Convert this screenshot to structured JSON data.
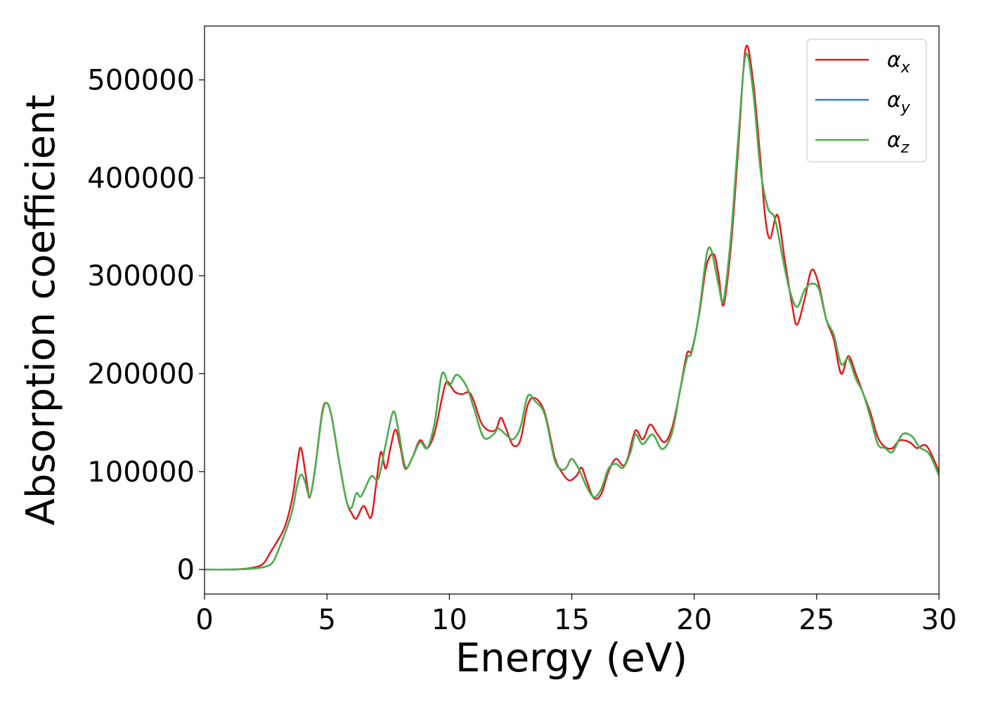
{
  "chart_data": {
    "type": "line",
    "title": "",
    "xlabel": "Energy (eV)",
    "ylabel": "Absorption coefficient",
    "xlim": [
      0,
      30
    ],
    "ylim": [
      -25000,
      555000
    ],
    "xticks": [
      0,
      5,
      10,
      15,
      20,
      25,
      30
    ],
    "xtick_labels": [
      "0",
      "5",
      "10",
      "15",
      "20",
      "25",
      "30"
    ],
    "yticks": [
      0,
      100000,
      200000,
      300000,
      400000,
      500000
    ],
    "ytick_labels": [
      "0",
      "100000",
      "200000",
      "300000",
      "400000",
      "500000"
    ],
    "grid": false,
    "legend_position": "top-right",
    "series": [
      {
        "name": "α_x",
        "symbol": "α",
        "subscript": "x",
        "color": "#e41a1c",
        "points": [
          [
            0,
            0
          ],
          [
            1,
            0
          ],
          [
            1.5,
            500
          ],
          [
            2,
            2000
          ],
          [
            2.4,
            6000
          ],
          [
            2.7,
            18000
          ],
          [
            3.0,
            30000
          ],
          [
            3.3,
            45000
          ],
          [
            3.6,
            75000
          ],
          [
            3.8,
            110000
          ],
          [
            3.9,
            124000
          ],
          [
            4.0,
            118000
          ],
          [
            4.2,
            85000
          ],
          [
            4.3,
            74000
          ],
          [
            4.5,
            100000
          ],
          [
            4.8,
            160000
          ],
          [
            5.0,
            170000
          ],
          [
            5.2,
            155000
          ],
          [
            5.5,
            110000
          ],
          [
            5.8,
            70000
          ],
          [
            6.0,
            58000
          ],
          [
            6.2,
            52000
          ],
          [
            6.5,
            65000
          ],
          [
            6.8,
            53000
          ],
          [
            7.0,
            85000
          ],
          [
            7.2,
            120000
          ],
          [
            7.4,
            103000
          ],
          [
            7.6,
            125000
          ],
          [
            7.8,
            143000
          ],
          [
            8.0,
            125000
          ],
          [
            8.2,
            103000
          ],
          [
            8.5,
            115000
          ],
          [
            8.8,
            132000
          ],
          [
            9.1,
            124000
          ],
          [
            9.4,
            140000
          ],
          [
            9.7,
            175000
          ],
          [
            9.9,
            192000
          ],
          [
            10.2,
            182000
          ],
          [
            10.5,
            179000
          ],
          [
            10.8,
            181000
          ],
          [
            11.0,
            172000
          ],
          [
            11.3,
            150000
          ],
          [
            11.6,
            142000
          ],
          [
            11.9,
            143000
          ],
          [
            12.1,
            155000
          ],
          [
            12.3,
            145000
          ],
          [
            12.6,
            127000
          ],
          [
            12.9,
            132000
          ],
          [
            13.2,
            168000
          ],
          [
            13.5,
            175000
          ],
          [
            13.9,
            160000
          ],
          [
            14.3,
            115000
          ],
          [
            14.6,
            99000
          ],
          [
            14.9,
            91000
          ],
          [
            15.2,
            96000
          ],
          [
            15.4,
            104000
          ],
          [
            15.6,
            91000
          ],
          [
            15.9,
            73000
          ],
          [
            16.2,
            77000
          ],
          [
            16.5,
            100000
          ],
          [
            16.8,
            113000
          ],
          [
            17.1,
            106000
          ],
          [
            17.3,
            115000
          ],
          [
            17.6,
            142000
          ],
          [
            17.9,
            133000
          ],
          [
            18.2,
            148000
          ],
          [
            18.5,
            138000
          ],
          [
            18.8,
            130000
          ],
          [
            19.1,
            145000
          ],
          [
            19.4,
            180000
          ],
          [
            19.7,
            220000
          ],
          [
            19.9,
            224000
          ],
          [
            20.2,
            260000
          ],
          [
            20.5,
            310000
          ],
          [
            20.8,
            322000
          ],
          [
            21.0,
            300000
          ],
          [
            21.2,
            270000
          ],
          [
            21.5,
            330000
          ],
          [
            21.8,
            430000
          ],
          [
            22.1,
            532000
          ],
          [
            22.4,
            500000
          ],
          [
            22.7,
            420000
          ],
          [
            22.9,
            360000
          ],
          [
            23.1,
            338000
          ],
          [
            23.4,
            362000
          ],
          [
            23.7,
            316000
          ],
          [
            24.0,
            270000
          ],
          [
            24.2,
            250000
          ],
          [
            24.5,
            275000
          ],
          [
            24.8,
            306000
          ],
          [
            25.1,
            290000
          ],
          [
            25.4,
            255000
          ],
          [
            25.7,
            235000
          ],
          [
            26.0,
            200000
          ],
          [
            26.3,
            218000
          ],
          [
            26.6,
            200000
          ],
          [
            26.9,
            180000
          ],
          [
            27.2,
            160000
          ],
          [
            27.5,
            135000
          ],
          [
            27.8,
            125000
          ],
          [
            28.1,
            124000
          ],
          [
            28.4,
            132000
          ],
          [
            28.8,
            130000
          ],
          [
            29.1,
            124000
          ],
          [
            29.5,
            126000
          ],
          [
            30.0,
            100000
          ]
        ]
      },
      {
        "name": "α_y",
        "symbol": "α",
        "subscript": "y",
        "color": "#377eb8",
        "points": [
          [
            0,
            0
          ],
          [
            1,
            0
          ],
          [
            1.5,
            300
          ],
          [
            2,
            1000
          ],
          [
            2.5,
            3000
          ],
          [
            2.8,
            8000
          ],
          [
            3.1,
            25000
          ],
          [
            3.4,
            45000
          ],
          [
            3.6,
            62000
          ],
          [
            3.8,
            88000
          ],
          [
            3.95,
            97000
          ],
          [
            4.1,
            90000
          ],
          [
            4.3,
            75000
          ],
          [
            4.5,
            100000
          ],
          [
            4.8,
            158000
          ],
          [
            5.0,
            170000
          ],
          [
            5.2,
            155000
          ],
          [
            5.5,
            110000
          ],
          [
            5.8,
            70000
          ],
          [
            6.0,
            63000
          ],
          [
            6.2,
            78000
          ],
          [
            6.4,
            75000
          ],
          [
            6.8,
            95000
          ],
          [
            7.1,
            93000
          ],
          [
            7.4,
            128000
          ],
          [
            7.7,
            161000
          ],
          [
            7.9,
            145000
          ],
          [
            8.2,
            105000
          ],
          [
            8.5,
            115000
          ],
          [
            8.8,
            130000
          ],
          [
            9.1,
            124000
          ],
          [
            9.4,
            150000
          ],
          [
            9.7,
            200000
          ],
          [
            10.0,
            188000
          ],
          [
            10.3,
            199000
          ],
          [
            10.7,
            187000
          ],
          [
            11.0,
            165000
          ],
          [
            11.4,
            135000
          ],
          [
            11.8,
            138000
          ],
          [
            12.0,
            144000
          ],
          [
            12.3,
            138000
          ],
          [
            12.6,
            133000
          ],
          [
            12.9,
            145000
          ],
          [
            13.2,
            177000
          ],
          [
            13.5,
            172000
          ],
          [
            13.9,
            158000
          ],
          [
            14.3,
            112000
          ],
          [
            14.6,
            102000
          ],
          [
            14.8,
            105000
          ],
          [
            15.0,
            113000
          ],
          [
            15.3,
            102000
          ],
          [
            15.6,
            85000
          ],
          [
            15.9,
            74000
          ],
          [
            16.2,
            82000
          ],
          [
            16.5,
            103000
          ],
          [
            16.8,
            108000
          ],
          [
            17.1,
            104000
          ],
          [
            17.4,
            120000
          ],
          [
            17.6,
            138000
          ],
          [
            17.9,
            128000
          ],
          [
            18.3,
            138000
          ],
          [
            18.7,
            123000
          ],
          [
            19.1,
            140000
          ],
          [
            19.4,
            180000
          ],
          [
            19.7,
            215000
          ],
          [
            19.9,
            222000
          ],
          [
            20.2,
            262000
          ],
          [
            20.5,
            320000
          ],
          [
            20.7,
            326000
          ],
          [
            21.0,
            290000
          ],
          [
            21.2,
            275000
          ],
          [
            21.5,
            340000
          ],
          [
            21.8,
            440000
          ],
          [
            22.1,
            525000
          ],
          [
            22.4,
            490000
          ],
          [
            22.7,
            410000
          ],
          [
            23.0,
            370000
          ],
          [
            23.3,
            358000
          ],
          [
            23.6,
            320000
          ],
          [
            23.9,
            285000
          ],
          [
            24.2,
            268000
          ],
          [
            24.5,
            285000
          ],
          [
            24.8,
            292000
          ],
          [
            25.1,
            286000
          ],
          [
            25.4,
            255000
          ],
          [
            25.7,
            240000
          ],
          [
            26.0,
            210000
          ],
          [
            26.3,
            215000
          ],
          [
            26.6,
            195000
          ],
          [
            26.9,
            180000
          ],
          [
            27.2,
            155000
          ],
          [
            27.5,
            128000
          ],
          [
            27.8,
            124000
          ],
          [
            28.1,
            120000
          ],
          [
            28.5,
            138000
          ],
          [
            28.9,
            136000
          ],
          [
            29.2,
            125000
          ],
          [
            29.6,
            118000
          ],
          [
            30.0,
            96000
          ]
        ]
      },
      {
        "name": "α_z",
        "symbol": "α",
        "subscript": "z",
        "color": "#4daf4a",
        "points": [
          [
            0,
            0
          ],
          [
            1,
            0
          ],
          [
            1.5,
            300
          ],
          [
            2,
            1000
          ],
          [
            2.5,
            3000
          ],
          [
            2.8,
            8000
          ],
          [
            3.1,
            25000
          ],
          [
            3.4,
            45000
          ],
          [
            3.6,
            62000
          ],
          [
            3.8,
            88000
          ],
          [
            3.95,
            97000
          ],
          [
            4.1,
            90000
          ],
          [
            4.3,
            75000
          ],
          [
            4.5,
            100000
          ],
          [
            4.8,
            158000
          ],
          [
            5.0,
            170000
          ],
          [
            5.2,
            155000
          ],
          [
            5.5,
            110000
          ],
          [
            5.8,
            70000
          ],
          [
            6.0,
            63000
          ],
          [
            6.2,
            78000
          ],
          [
            6.4,
            75000
          ],
          [
            6.8,
            95000
          ],
          [
            7.1,
            93000
          ],
          [
            7.4,
            128000
          ],
          [
            7.7,
            161000
          ],
          [
            7.9,
            145000
          ],
          [
            8.2,
            105000
          ],
          [
            8.5,
            115000
          ],
          [
            8.8,
            130000
          ],
          [
            9.1,
            124000
          ],
          [
            9.4,
            150000
          ],
          [
            9.7,
            200000
          ],
          [
            10.0,
            188000
          ],
          [
            10.3,
            199000
          ],
          [
            10.7,
            187000
          ],
          [
            11.0,
            165000
          ],
          [
            11.4,
            135000
          ],
          [
            11.8,
            138000
          ],
          [
            12.0,
            144000
          ],
          [
            12.3,
            138000
          ],
          [
            12.6,
            133000
          ],
          [
            12.9,
            145000
          ],
          [
            13.2,
            177000
          ],
          [
            13.5,
            172000
          ],
          [
            13.9,
            158000
          ],
          [
            14.3,
            112000
          ],
          [
            14.6,
            102000
          ],
          [
            14.8,
            105000
          ],
          [
            15.0,
            113000
          ],
          [
            15.3,
            102000
          ],
          [
            15.6,
            85000
          ],
          [
            15.9,
            74000
          ],
          [
            16.2,
            82000
          ],
          [
            16.5,
            103000
          ],
          [
            16.8,
            108000
          ],
          [
            17.1,
            104000
          ],
          [
            17.4,
            120000
          ],
          [
            17.6,
            138000
          ],
          [
            17.9,
            128000
          ],
          [
            18.3,
            138000
          ],
          [
            18.7,
            123000
          ],
          [
            19.1,
            140000
          ],
          [
            19.4,
            180000
          ],
          [
            19.7,
            215000
          ],
          [
            19.9,
            222000
          ],
          [
            20.2,
            262000
          ],
          [
            20.5,
            320000
          ],
          [
            20.7,
            326000
          ],
          [
            21.0,
            290000
          ],
          [
            21.2,
            275000
          ],
          [
            21.5,
            340000
          ],
          [
            21.8,
            440000
          ],
          [
            22.1,
            525000
          ],
          [
            22.4,
            490000
          ],
          [
            22.7,
            410000
          ],
          [
            23.0,
            370000
          ],
          [
            23.3,
            358000
          ],
          [
            23.6,
            320000
          ],
          [
            23.9,
            285000
          ],
          [
            24.2,
            268000
          ],
          [
            24.5,
            285000
          ],
          [
            24.8,
            292000
          ],
          [
            25.1,
            286000
          ],
          [
            25.4,
            255000
          ],
          [
            25.7,
            240000
          ],
          [
            26.0,
            210000
          ],
          [
            26.3,
            215000
          ],
          [
            26.6,
            195000
          ],
          [
            26.9,
            180000
          ],
          [
            27.2,
            155000
          ],
          [
            27.5,
            128000
          ],
          [
            27.8,
            124000
          ],
          [
            28.1,
            120000
          ],
          [
            28.5,
            138000
          ],
          [
            28.9,
            136000
          ],
          [
            29.2,
            125000
          ],
          [
            29.6,
            118000
          ],
          [
            30.0,
            96000
          ]
        ]
      }
    ]
  }
}
